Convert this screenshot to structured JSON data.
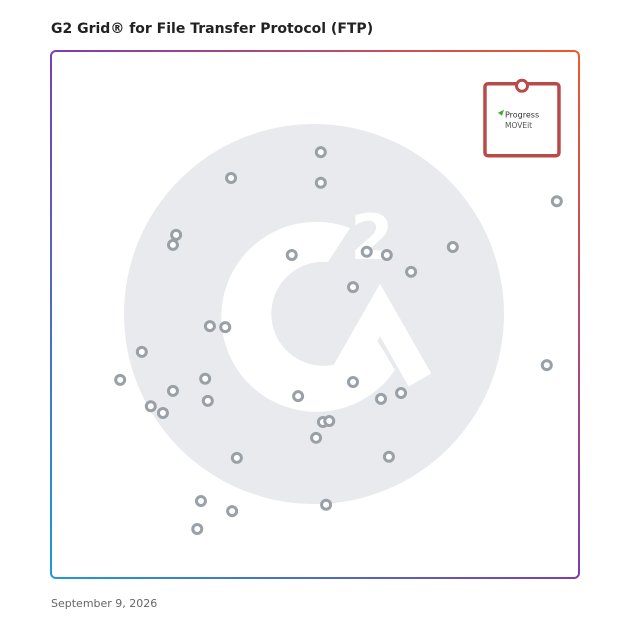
{
  "chart_data": {
    "type": "scatter",
    "title": "G2 Grid® for File Transfer Protocol (FTP)",
    "footnote": "September 9, 2026",
    "xlim": [
      0,
      100
    ],
    "ylim": [
      0,
      100
    ],
    "xdivider": 50,
    "ydivider": 50,
    "color": "#9aa0a8",
    "x": [
      51.1,
      34.1,
      51.1,
      23.7,
      23.1,
      45.6,
      59.8,
      63.6,
      76.1,
      68.2,
      57.2,
      95.8,
      30.1,
      33.0,
      17.2,
      13.1,
      29.2,
      23.1,
      46.8,
      57.2,
      66.3,
      62.5,
      93.9,
      18.9,
      21.2,
      29.7,
      51.5,
      52.7,
      50.2,
      64.0,
      35.2,
      28.4,
      34.3,
      52.1,
      27.7
    ],
    "y": [
      80.8,
      75.9,
      75.0,
      65.1,
      63.2,
      61.3,
      61.9,
      61.3,
      62.8,
      58.1,
      55.2,
      71.5,
      47.8,
      47.6,
      42.9,
      37.6,
      37.8,
      35.5,
      34.5,
      37.2,
      35.1,
      34.0,
      40.4,
      32.6,
      31.3,
      33.6,
      29.6,
      29.8,
      26.6,
      23.0,
      22.8,
      14.6,
      12.7,
      13.9,
      9.3
    ],
    "highlight": {
      "x": 89.2,
      "y": 93.4,
      "brand": "Progress",
      "product": "MOVEit",
      "color": "#b84a4a"
    }
  }
}
